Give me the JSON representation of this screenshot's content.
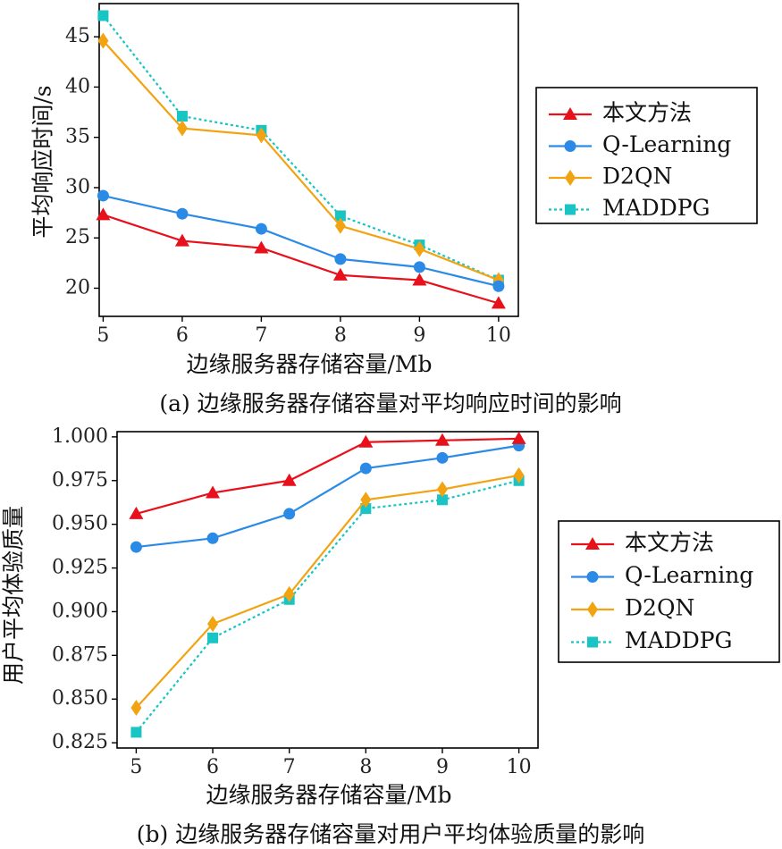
{
  "chart_data": [
    {
      "type": "line",
      "caption": "(a) 边缘服务器存储容量对平均响应时间的影响",
      "xlabel": "边缘服务器存储容量/Mb",
      "ylabel": "平均响应时间/s",
      "x": [
        5,
        6,
        7,
        8,
        9,
        10
      ],
      "xlim": [
        4.95,
        10.25
      ],
      "ylim": [
        17.2,
        48.3
      ],
      "yticks": [
        20,
        25,
        30,
        35,
        40,
        45
      ],
      "ytick_labels": [
        "20",
        "25",
        "30",
        "35",
        "40",
        "45"
      ],
      "legend_position": "right",
      "series": [
        {
          "name": "本文方法",
          "color": "#e8101b",
          "marker": "triangle",
          "dash": false,
          "values": [
            27.3,
            24.7,
            24.0,
            21.3,
            20.8,
            18.5
          ]
        },
        {
          "name": "Q-Learning",
          "color": "#2a8ae6",
          "marker": "circle",
          "dash": false,
          "values": [
            29.2,
            27.4,
            25.9,
            22.9,
            22.1,
            20.2
          ]
        },
        {
          "name": "D2QN",
          "color": "#f2a312",
          "marker": "diamond",
          "dash": false,
          "values": [
            44.6,
            35.9,
            35.2,
            26.2,
            23.9,
            20.8
          ]
        },
        {
          "name": "MADDPG",
          "color": "#19c4c4",
          "marker": "square",
          "dash": true,
          "values": [
            47.1,
            37.1,
            35.7,
            27.2,
            24.3,
            20.8
          ]
        }
      ]
    },
    {
      "type": "line",
      "caption": "(b) 边缘服务器存储容量对用户平均体验质量的影响",
      "xlabel": "边缘服务器存储容量/Mb",
      "ylabel": "用户平均体验质量",
      "x": [
        5,
        6,
        7,
        8,
        9,
        10
      ],
      "xlim": [
        4.75,
        10.25
      ],
      "ylim": [
        0.822,
        1.003
      ],
      "yticks": [
        0.825,
        0.85,
        0.875,
        0.9,
        0.925,
        0.95,
        0.975,
        1.0
      ],
      "ytick_labels": [
        "0.825",
        "0.850",
        "0.875",
        "0.900",
        "0.925",
        "0.950",
        "0.975",
        "1.000"
      ],
      "legend_position": "right",
      "series": [
        {
          "name": "本文方法",
          "color": "#e8101b",
          "marker": "triangle",
          "dash": false,
          "values": [
            0.956,
            0.968,
            0.975,
            0.997,
            0.998,
            0.999
          ]
        },
        {
          "name": "Q-Learning",
          "color": "#2a8ae6",
          "marker": "circle",
          "dash": false,
          "values": [
            0.937,
            0.942,
            0.956,
            0.982,
            0.988,
            0.995
          ]
        },
        {
          "name": "D2QN",
          "color": "#f2a312",
          "marker": "diamond",
          "dash": false,
          "values": [
            0.845,
            0.893,
            0.91,
            0.964,
            0.97,
            0.978
          ]
        },
        {
          "name": "MADDPG",
          "color": "#19c4c4",
          "marker": "square",
          "dash": true,
          "values": [
            0.831,
            0.885,
            0.907,
            0.959,
            0.964,
            0.975
          ]
        }
      ]
    }
  ]
}
